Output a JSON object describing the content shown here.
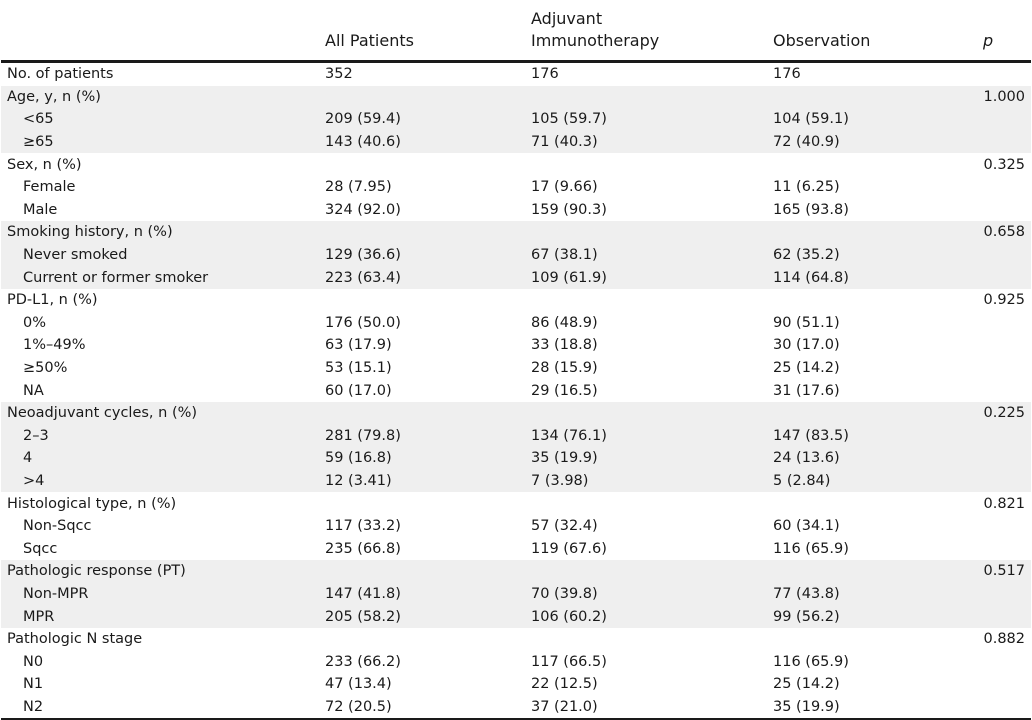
{
  "header": {
    "col1": "All Patients",
    "col2_line1": "Adjuvant",
    "col2_line2": "Immunotherapy",
    "col3": "Observation",
    "col4": "p"
  },
  "rows": [
    {
      "label": "No. of patients",
      "all": "352",
      "adj": "176",
      "obs": "176",
      "p": ""
    },
    {
      "label": "Age, y, n (%)",
      "all": "",
      "adj": "",
      "obs": "",
      "p": "1.000"
    },
    {
      "label": "<65",
      "all": "209 (59.4)",
      "adj": "105 (59.7)",
      "obs": "104 (59.1)",
      "p": ""
    },
    {
      "label": "≥65",
      "all": "143 (40.6)",
      "adj": "71 (40.3)",
      "obs": "72 (40.9)",
      "p": ""
    },
    {
      "label": "Sex, n (%)",
      "all": "",
      "adj": "",
      "obs": "",
      "p": "0.325"
    },
    {
      "label": "Female",
      "all": "28 (7.95)",
      "adj": "17 (9.66)",
      "obs": "11 (6.25)",
      "p": ""
    },
    {
      "label": "Male",
      "all": "324 (92.0)",
      "adj": "159 (90.3)",
      "obs": "165 (93.8)",
      "p": ""
    },
    {
      "label": "Smoking history, n (%)",
      "all": "",
      "adj": "",
      "obs": "",
      "p": "0.658"
    },
    {
      "label": "Never smoked",
      "all": "129 (36.6)",
      "adj": "67 (38.1)",
      "obs": "62 (35.2)",
      "p": ""
    },
    {
      "label": "Current or former smoker",
      "all": "223 (63.4)",
      "adj": "109 (61.9)",
      "obs": "114 (64.8)",
      "p": ""
    },
    {
      "label": "PD-L1, n (%)",
      "all": "",
      "adj": "",
      "obs": "",
      "p": "0.925"
    },
    {
      "label": "0%",
      "all": "176 (50.0)",
      "adj": "86 (48.9)",
      "obs": "90 (51.1)",
      "p": ""
    },
    {
      "label": "1%–49%",
      "all": "63 (17.9)",
      "adj": "33 (18.8)",
      "obs": "30 (17.0)",
      "p": ""
    },
    {
      "label": "≥50%",
      "all": "53 (15.1)",
      "adj": "28 (15.9)",
      "obs": "25 (14.2)",
      "p": ""
    },
    {
      "label": "NA",
      "all": "60 (17.0)",
      "adj": "29 (16.5)",
      "obs": "31 (17.6)",
      "p": ""
    },
    {
      "label": "Neoadjuvant cycles, n (%)",
      "all": "",
      "adj": "",
      "obs": "",
      "p": "0.225"
    },
    {
      "label": "2–3",
      "all": "281 (79.8)",
      "adj": "134 (76.1)",
      "obs": "147 (83.5)",
      "p": ""
    },
    {
      "label": "4",
      "all": "59 (16.8)",
      "adj": "35 (19.9)",
      "obs": "24 (13.6)",
      "p": ""
    },
    {
      "label": ">4",
      "all": "12 (3.41)",
      "adj": "7 (3.98)",
      "obs": "5 (2.84)",
      "p": ""
    },
    {
      "label": "Histological type, n (%)",
      "all": "",
      "adj": "",
      "obs": "",
      "p": "0.821"
    },
    {
      "label": "Non-Sqcc",
      "all": "117 (33.2)",
      "adj": "57 (32.4)",
      "obs": "60 (34.1)",
      "p": ""
    },
    {
      "label": "Sqcc",
      "all": "235 (66.8)",
      "adj": "119 (67.6)",
      "obs": "116 (65.9)",
      "p": ""
    },
    {
      "label": "Pathologic response (PT)",
      "all": "",
      "adj": "",
      "obs": "",
      "p": "0.517"
    },
    {
      "label": "Non-MPR",
      "all": "147 (41.8)",
      "adj": "70 (39.8)",
      "obs": "77 (43.8)",
      "p": ""
    },
    {
      "label": "MPR",
      "all": "205 (58.2)",
      "adj": "106 (60.2)",
      "obs": "99 (56.2)",
      "p": ""
    },
    {
      "label": "Pathologic N stage",
      "all": "",
      "adj": "",
      "obs": "",
      "p": "0.882"
    },
    {
      "label": "N0",
      "all": "233 (66.2)",
      "adj": "117 (66.5)",
      "obs": "116 (65.9)",
      "p": ""
    },
    {
      "label": "N1",
      "all": "47 (13.4)",
      "adj": "22 (12.5)",
      "obs": "25 (14.2)",
      "p": ""
    },
    {
      "label": "N2",
      "all": "72 (20.5)",
      "adj": "37 (21.0)",
      "obs": "35 (19.9)",
      "p": ""
    }
  ],
  "row_style": {
    "shaded_rows": [
      1,
      2,
      3,
      7,
      8,
      9,
      15,
      16,
      17,
      18,
      22,
      23,
      24
    ],
    "indented_rows": [
      2,
      3,
      5,
      6,
      8,
      9,
      11,
      12,
      13,
      14,
      16,
      17,
      18,
      20,
      21,
      23,
      24,
      26,
      27,
      28
    ],
    "shade_color": "#efefef"
  }
}
